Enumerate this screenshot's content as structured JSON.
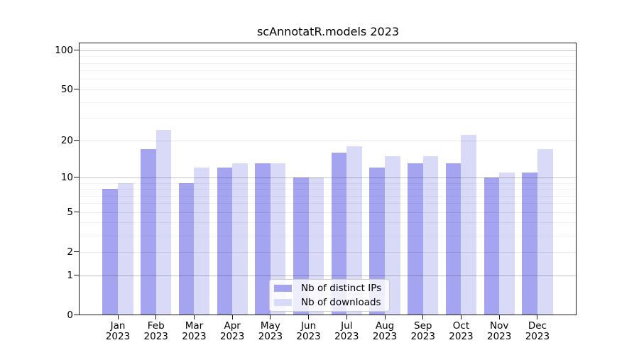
{
  "title": "scAnnotatR.models 2023",
  "legend": {
    "items": [
      {
        "label": "Nb of distinct IPs",
        "color": "#a4a4f0"
      },
      {
        "label": "Nb of downloads",
        "color": "#d9d9f8"
      }
    ]
  },
  "axes": {
    "ytick_values": [
      0,
      1,
      2,
      5,
      10,
      20,
      50,
      100
    ],
    "grid_major": [
      1,
      10,
      100
    ],
    "grid_mid": [
      2,
      5,
      20,
      50
    ],
    "grid_minor": [
      3,
      4,
      6,
      7,
      8,
      9,
      30,
      40,
      60,
      70,
      80,
      90
    ],
    "x_year": "2023"
  },
  "chart_data": {
    "type": "bar",
    "title": "scAnnotatR.models 2023",
    "categories": [
      "Jan",
      "Feb",
      "Mar",
      "Apr",
      "May",
      "Jun",
      "Jul",
      "Aug",
      "Sep",
      "Oct",
      "Nov",
      "Dec"
    ],
    "x_tick_line2": "2023",
    "series": [
      {
        "name": "Nb of distinct IPs",
        "color": "#a4a4f0",
        "values": [
          8,
          17,
          9,
          12,
          13,
          10,
          16,
          12,
          13,
          13,
          10,
          11
        ]
      },
      {
        "name": "Nb of downloads",
        "color": "#d9d9f8",
        "values": [
          9,
          24,
          12,
          13,
          13,
          10,
          18,
          15,
          15,
          22,
          11,
          17
        ]
      }
    ],
    "xlabel": "",
    "ylabel": "",
    "yscale": "log10(1+y)",
    "yticks": [
      0,
      1,
      2,
      5,
      10,
      20,
      50,
      100
    ],
    "ylim": [
      0,
      115
    ],
    "grid": "on",
    "legend_position": "inside-bottom-center"
  }
}
